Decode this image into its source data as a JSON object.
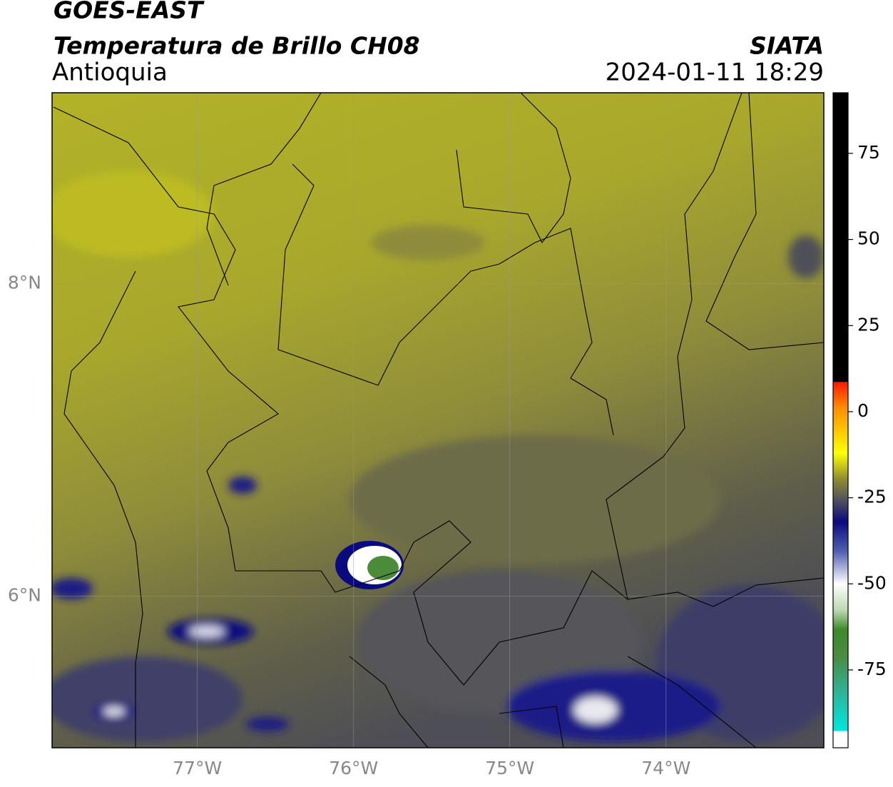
{
  "header": {
    "title": "GOES-EAST",
    "subtitle": "Temperatura de Brillo CH08",
    "region": "Antioquia",
    "source": "SIATA",
    "datetime": "2024-01-11 18:29"
  },
  "map": {
    "xlim": [
      -77.93,
      -72.99
    ],
    "ylim": [
      5.03,
      9.22
    ],
    "xticks": [
      {
        "value": -77,
        "label": "77°W"
      },
      {
        "value": -76,
        "label": "76°W"
      },
      {
        "value": -75,
        "label": "75°W"
      },
      {
        "value": -74,
        "label": "74°W"
      }
    ],
    "yticks": [
      {
        "value": 8,
        "label": "8°N"
      },
      {
        "value": 6,
        "label": "6°N"
      }
    ],
    "grid": true
  },
  "colorbar": {
    "lim": [
      -97.6,
      92.6
    ],
    "ticks": [
      75,
      50,
      25,
      0,
      -25,
      -50,
      -75
    ]
  }
}
